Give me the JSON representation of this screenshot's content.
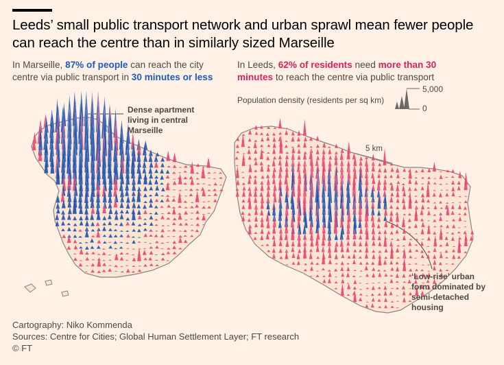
{
  "title": "Leeds’ small public transport network and urban sprawl mean fewer people can reach the centre than in similarly sized Marseille",
  "marseille": {
    "text_before": "In Marseille, ",
    "highlight1": "87% of people",
    "text_middle": " can reach the city centre via public transport in ",
    "highlight2": "30 minutes or less",
    "annotation": "Dense apartment living in central Marseille"
  },
  "leeds": {
    "text_before": "In Leeds, ",
    "highlight1": "62% of residents",
    "text_middle": " need ",
    "highlight2": "more than 30 minutes",
    "text_after": " to reach the centre via public transport",
    "annotation": "‘Low-rise’ urban form dominated by semi-detached housing",
    "scale": "5 km"
  },
  "legend": {
    "label": "Population density (residents per sq km)",
    "max": "5,000",
    "min": "0"
  },
  "colors": {
    "within_30_min": "#1E4FA8",
    "over_30_min": "#E8416E",
    "boundary": "#8a8480",
    "background": "#FFF1E5"
  },
  "footer": {
    "cartography": "Cartography: Niko Kommenda",
    "sources": "Sources: Centre for Cities; Global Human Settlement Layer; FT research",
    "copyright": "© FT"
  }
}
